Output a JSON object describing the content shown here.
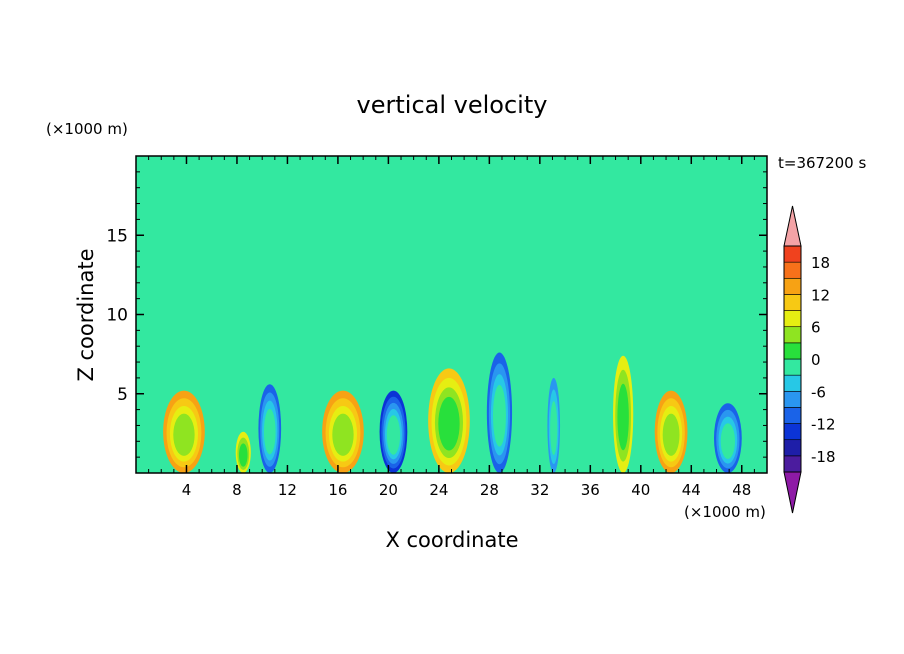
{
  "chart_data": {
    "type": "heatmap",
    "title": "vertical velocity",
    "xlabel": "X coordinate",
    "ylabel": "Z coordinate",
    "x_unit": "(×1000 m)",
    "y_unit": "(×1000 m)",
    "time_label": "t=367200 s",
    "xlim": [
      0,
      50
    ],
    "ylim": [
      0,
      20
    ],
    "x_ticks": [
      "4",
      "8",
      "12",
      "16",
      "20",
      "24",
      "28",
      "32",
      "36",
      "40",
      "44",
      "48"
    ],
    "y_ticks": [
      "5",
      "10",
      "15"
    ],
    "colorbar": {
      "levels": [
        -21,
        -18,
        -15,
        -12,
        -9,
        -6,
        -3,
        0,
        3,
        6,
        9,
        12,
        15,
        18,
        21
      ],
      "tick_labels": [
        "18",
        "12",
        "6",
        "0",
        "-6",
        "-12",
        "-18"
      ],
      "colors": [
        "#8e1aa6",
        "#4b1c9e",
        "#1e1ea8",
        "#0b34d6",
        "#1a63e8",
        "#2a96f0",
        "#27c8e6",
        "#33e8a0",
        "#28e03c",
        "#8fe421",
        "#e6ee12",
        "#f7c914",
        "#f7a214",
        "#f7711a",
        "#f0421e",
        "#e01a1a",
        "#f4a3a6"
      ],
      "extend": "both"
    },
    "features": [
      {
        "x": 3.8,
        "z": 2.6,
        "w": 3.3,
        "value": 12
      },
      {
        "x": 8.5,
        "z": 1.3,
        "w": 1.2,
        "value": 7
      },
      {
        "x": 10.6,
        "z": 2.8,
        "w": 1.8,
        "value": -11
      },
      {
        "x": 16.4,
        "z": 2.6,
        "w": 3.3,
        "value": 12
      },
      {
        "x": 20.4,
        "z": 2.6,
        "w": 2.2,
        "value": -13
      },
      {
        "x": 24.8,
        "z": 3.3,
        "w": 3.3,
        "value": 11
      },
      {
        "x": 28.8,
        "z": 3.8,
        "w": 2.0,
        "value": -11
      },
      {
        "x": 33.1,
        "z": 3.0,
        "w": 1.0,
        "value": -9
      },
      {
        "x": 38.6,
        "z": 3.7,
        "w": 1.6,
        "value": 7
      },
      {
        "x": 42.4,
        "z": 2.6,
        "w": 2.6,
        "value": 12
      },
      {
        "x": 46.9,
        "z": 2.2,
        "w": 2.2,
        "value": -10
      }
    ]
  }
}
